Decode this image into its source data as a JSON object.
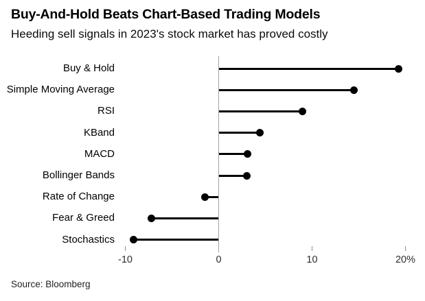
{
  "header": {
    "title": "Buy-And-Hold Beats Chart-Based Trading Models",
    "subtitle": "Heeding sell signals in 2023's stock market has proved costly"
  },
  "footer": {
    "source": "Source: Bloomberg"
  },
  "chart_data": {
    "type": "bar",
    "subtype": "horizontal-lollipop",
    "title": "Buy-And-Hold Beats Chart-Based Trading Models",
    "subtitle": "Heeding sell signals in 2023's stock market has proved costly",
    "categories": [
      "Buy & Hold",
      "Simple Moving Average",
      "RSI",
      "KBand",
      "MACD",
      "Bollinger Bands",
      "Rate of Change",
      "Fear & Greed",
      "Stochastics"
    ],
    "values": [
      19.3,
      14.5,
      9.0,
      4.4,
      3.1,
      3.0,
      -1.5,
      -7.2,
      -9.1
    ],
    "unit": "percent",
    "xlabel": "",
    "ylabel": "",
    "xlim": [
      -12,
      22
    ],
    "baseline": 0,
    "grid": false,
    "legend": false,
    "x_ticks": [
      {
        "value": -10,
        "label": "-10"
      },
      {
        "value": 0,
        "label": "0"
      },
      {
        "value": 10,
        "label": "10"
      },
      {
        "value": 20,
        "label": "20%"
      }
    ],
    "colors": {
      "dot": "#000000",
      "stem": "#000000",
      "axis": "#a3a3a3",
      "tick": "#8c8c8c",
      "text": "#000000"
    },
    "source": "Source: Bloomberg"
  }
}
